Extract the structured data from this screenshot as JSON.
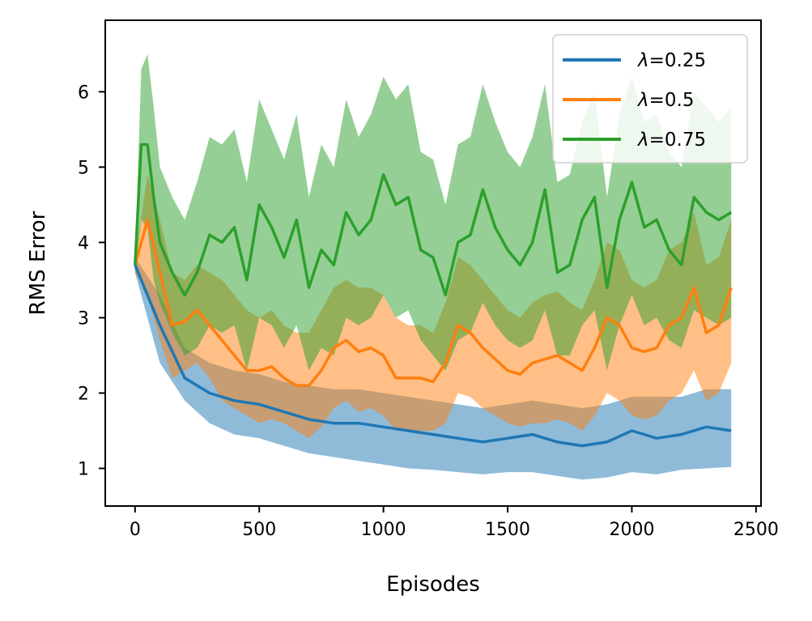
{
  "chart_data": {
    "type": "line",
    "title": "",
    "xlabel": "Episodes",
    "ylabel": "RMS Error",
    "xlim": [
      -120,
      2520
    ],
    "ylim": [
      0.5,
      6.95
    ],
    "xticks": [
      0,
      500,
      1000,
      1500,
      2000,
      2500
    ],
    "xtick_labels": [
      "0",
      "500",
      "1000",
      "1500",
      "2000",
      "2500"
    ],
    "yticks": [
      1,
      2,
      3,
      4,
      5,
      6
    ],
    "ytick_labels": [
      "1",
      "2",
      "3",
      "4",
      "5",
      "6"
    ],
    "grid": false,
    "legend_position": "top-right",
    "series": [
      {
        "name": "λ=0.25",
        "legend_symbol": "λ",
        "legend_value": "=0.25",
        "color": "#1f77b4",
        "x": [
          0,
          100,
          200,
          300,
          400,
          500,
          600,
          700,
          800,
          900,
          1000,
          1100,
          1200,
          1300,
          1400,
          1500,
          1600,
          1700,
          1800,
          1900,
          2000,
          2100,
          2200,
          2300,
          2400
        ],
        "y": [
          3.7,
          2.9,
          2.2,
          2.0,
          1.9,
          1.85,
          1.75,
          1.65,
          1.6,
          1.6,
          1.55,
          1.5,
          1.45,
          1.4,
          1.35,
          1.4,
          1.45,
          1.35,
          1.3,
          1.35,
          1.5,
          1.4,
          1.45,
          1.55,
          1.5
        ],
        "lower": [
          3.6,
          2.4,
          1.9,
          1.6,
          1.45,
          1.4,
          1.3,
          1.2,
          1.15,
          1.1,
          1.05,
          1.0,
          0.98,
          0.95,
          0.92,
          0.95,
          0.95,
          0.9,
          0.85,
          0.88,
          0.95,
          0.92,
          0.98,
          1.0,
          1.02
        ],
        "upper": [
          3.8,
          3.3,
          2.6,
          2.4,
          2.3,
          2.25,
          2.15,
          2.1,
          2.05,
          2.05,
          2.0,
          1.95,
          1.9,
          1.85,
          1.8,
          1.85,
          1.9,
          1.85,
          1.8,
          1.85,
          1.95,
          1.95,
          1.95,
          2.05,
          2.05
        ]
      },
      {
        "name": "λ=0.5",
        "legend_symbol": "λ",
        "legend_value": "=0.5",
        "color": "#ff7f0e",
        "x": [
          0,
          50,
          100,
          150,
          200,
          250,
          300,
          350,
          400,
          450,
          500,
          550,
          600,
          650,
          700,
          750,
          800,
          850,
          900,
          950,
          1000,
          1050,
          1100,
          1150,
          1200,
          1250,
          1300,
          1350,
          1400,
          1450,
          1500,
          1550,
          1600,
          1650,
          1700,
          1750,
          1800,
          1850,
          1900,
          1950,
          2000,
          2050,
          2100,
          2150,
          2200,
          2250,
          2300,
          2350,
          2400
        ],
        "y": [
          3.7,
          4.3,
          3.6,
          2.9,
          2.95,
          3.1,
          2.9,
          2.7,
          2.5,
          2.3,
          2.3,
          2.35,
          2.2,
          2.1,
          2.1,
          2.3,
          2.6,
          2.7,
          2.55,
          2.6,
          2.5,
          2.2,
          2.2,
          2.2,
          2.15,
          2.4,
          2.9,
          2.8,
          2.6,
          2.45,
          2.3,
          2.25,
          2.4,
          2.45,
          2.5,
          2.4,
          2.3,
          2.6,
          3.0,
          2.9,
          2.6,
          2.55,
          2.6,
          2.9,
          3.0,
          3.4,
          2.8,
          2.9,
          3.4
        ],
        "lower": [
          3.6,
          3.3,
          2.7,
          2.2,
          2.3,
          2.4,
          2.2,
          1.9,
          1.8,
          1.7,
          1.6,
          1.65,
          1.6,
          1.5,
          1.4,
          1.55,
          1.8,
          1.9,
          1.75,
          1.8,
          1.7,
          1.5,
          1.5,
          1.5,
          1.5,
          1.6,
          2.0,
          1.95,
          1.8,
          1.7,
          1.6,
          1.55,
          1.6,
          1.6,
          1.65,
          1.6,
          1.5,
          1.7,
          2.0,
          1.9,
          1.7,
          1.65,
          1.7,
          1.9,
          2.0,
          2.3,
          1.9,
          2.0,
          2.4
        ],
        "upper": [
          3.8,
          4.9,
          4.3,
          3.6,
          3.5,
          3.7,
          3.6,
          3.5,
          3.3,
          3.1,
          3.0,
          3.1,
          2.9,
          2.8,
          2.8,
          3.1,
          3.4,
          3.5,
          3.4,
          3.4,
          3.3,
          3.0,
          2.9,
          2.9,
          2.8,
          3.2,
          3.8,
          3.7,
          3.5,
          3.3,
          3.1,
          3.0,
          3.2,
          3.3,
          3.35,
          3.2,
          3.1,
          3.5,
          4.0,
          3.9,
          3.5,
          3.4,
          3.5,
          3.9,
          4.0,
          4.4,
          3.7,
          3.8,
          4.3
        ]
      },
      {
        "name": "λ=0.75",
        "legend_symbol": "λ",
        "legend_value": "=0.75",
        "color": "#2ca02c",
        "x": [
          0,
          25,
          50,
          75,
          100,
          150,
          200,
          250,
          300,
          350,
          400,
          450,
          500,
          550,
          600,
          650,
          700,
          750,
          800,
          850,
          900,
          950,
          1000,
          1050,
          1100,
          1150,
          1200,
          1250,
          1300,
          1350,
          1400,
          1450,
          1500,
          1550,
          1600,
          1650,
          1700,
          1750,
          1800,
          1850,
          1900,
          1950,
          2000,
          2050,
          2100,
          2150,
          2200,
          2250,
          2300,
          2350,
          2400
        ],
        "y": [
          3.7,
          5.3,
          5.3,
          4.6,
          4.0,
          3.6,
          3.3,
          3.6,
          4.1,
          4.0,
          4.2,
          3.5,
          4.5,
          4.2,
          3.8,
          4.3,
          3.4,
          3.9,
          3.7,
          4.4,
          4.1,
          4.3,
          4.9,
          4.5,
          4.6,
          3.9,
          3.8,
          3.3,
          4.0,
          4.1,
          4.7,
          4.2,
          3.9,
          3.7,
          4.0,
          4.7,
          3.6,
          3.7,
          4.3,
          4.6,
          3.4,
          4.3,
          4.8,
          4.2,
          4.3,
          3.9,
          3.7,
          4.6,
          4.4,
          4.3,
          4.4
        ],
        "lower": [
          3.6,
          4.3,
          4.2,
          3.5,
          3.2,
          2.8,
          2.5,
          2.6,
          2.9,
          2.8,
          2.9,
          2.3,
          3.0,
          2.9,
          2.6,
          2.9,
          2.3,
          2.6,
          2.5,
          3.0,
          2.9,
          3.0,
          3.3,
          3.0,
          3.1,
          2.7,
          2.5,
          2.3,
          2.7,
          2.8,
          3.2,
          2.9,
          2.7,
          2.6,
          2.7,
          3.1,
          2.5,
          2.5,
          2.9,
          3.1,
          2.3,
          2.9,
          3.3,
          2.9,
          3.0,
          2.7,
          2.6,
          3.1,
          3.0,
          2.9,
          3.0
        ],
        "upper": [
          3.8,
          6.3,
          6.5,
          5.8,
          5.0,
          4.6,
          4.3,
          4.8,
          5.4,
          5.3,
          5.5,
          4.8,
          5.9,
          5.5,
          5.1,
          5.7,
          4.6,
          5.3,
          5.0,
          5.9,
          5.4,
          5.7,
          6.2,
          5.9,
          6.1,
          5.2,
          5.1,
          4.5,
          5.3,
          5.4,
          6.1,
          5.6,
          5.2,
          5.0,
          5.4,
          6.1,
          4.8,
          4.9,
          5.6,
          6.0,
          4.6,
          5.7,
          6.2,
          5.6,
          5.7,
          5.2,
          5.0,
          6.0,
          5.8,
          5.6,
          5.8
        ]
      }
    ]
  }
}
